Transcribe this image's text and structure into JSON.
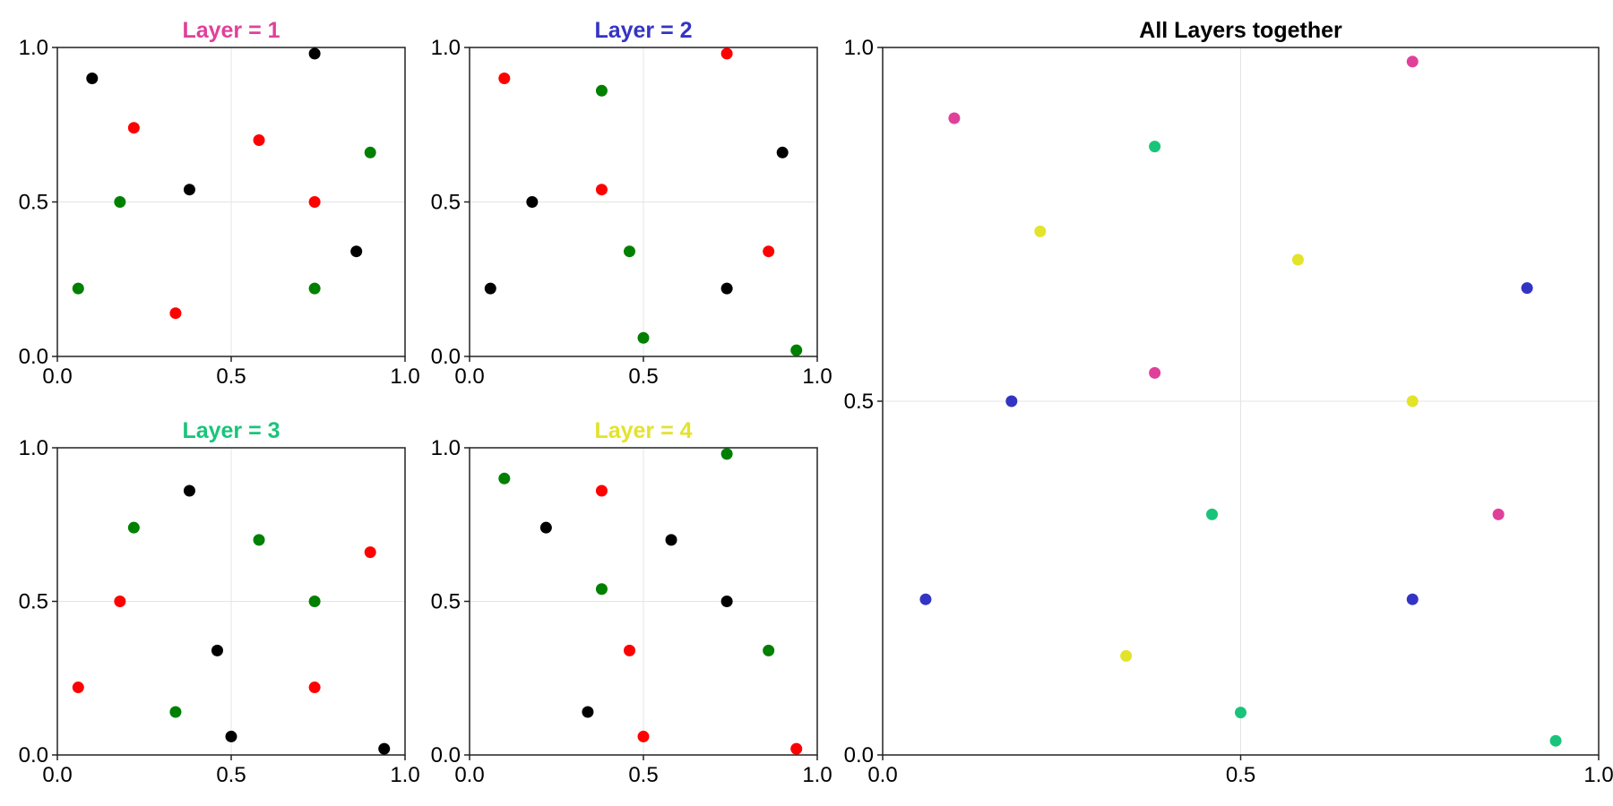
{
  "colors": {
    "layer1": "#e0409a",
    "layer2": "#3434c4",
    "layer3": "#19c47a",
    "layer4": "#e3e32a",
    "black": "#000000",
    "red": "#ff0000",
    "green": "#008000",
    "all_title": "#000000"
  },
  "chart_data": [
    {
      "type": "scatter",
      "title": "Layer = 1",
      "title_color": "#e0409a",
      "xlim": [
        0,
        1
      ],
      "ylim": [
        0,
        1
      ],
      "xticks": [
        "0.0",
        "0.5",
        "1.0"
      ],
      "yticks": [
        "0.0",
        "0.5",
        "1.0"
      ],
      "grid": true,
      "series": [
        {
          "color": "black",
          "x": [
            0.1,
            0.74,
            0.38,
            0.86
          ],
          "y": [
            0.9,
            0.98,
            0.54,
            0.34
          ]
        },
        {
          "color": "red",
          "x": [
            0.22,
            0.58,
            0.74,
            0.34
          ],
          "y": [
            0.74,
            0.7,
            0.5,
            0.14
          ]
        },
        {
          "color": "green",
          "x": [
            0.9,
            0.18,
            0.06,
            0.74
          ],
          "y": [
            0.66,
            0.5,
            0.22,
            0.22
          ]
        }
      ]
    },
    {
      "type": "scatter",
      "title": "Layer = 2",
      "title_color": "#3434c4",
      "xlim": [
        0,
        1
      ],
      "ylim": [
        0,
        1
      ],
      "xticks": [
        "0.0",
        "0.5",
        "1.0"
      ],
      "yticks": [
        "0.0",
        "0.5",
        "1.0"
      ],
      "grid": true,
      "series": [
        {
          "color": "black",
          "x": [
            0.9,
            0.18,
            0.06,
            0.74
          ],
          "y": [
            0.66,
            0.5,
            0.22,
            0.22
          ]
        },
        {
          "color": "red",
          "x": [
            0.1,
            0.74,
            0.38,
            0.86
          ],
          "y": [
            0.9,
            0.98,
            0.54,
            0.34
          ]
        },
        {
          "color": "green",
          "x": [
            0.38,
            0.46,
            0.5,
            0.94
          ],
          "y": [
            0.86,
            0.34,
            0.06,
            0.02
          ]
        }
      ]
    },
    {
      "type": "scatter",
      "title": "Layer = 3",
      "title_color": "#19c47a",
      "xlim": [
        0,
        1
      ],
      "ylim": [
        0,
        1
      ],
      "xticks": [
        "0.0",
        "0.5",
        "1.0"
      ],
      "yticks": [
        "0.0",
        "0.5",
        "1.0"
      ],
      "grid": true,
      "series": [
        {
          "color": "black",
          "x": [
            0.38,
            0.46,
            0.5,
            0.94
          ],
          "y": [
            0.86,
            0.34,
            0.06,
            0.02
          ]
        },
        {
          "color": "red",
          "x": [
            0.9,
            0.18,
            0.06,
            0.74
          ],
          "y": [
            0.66,
            0.5,
            0.22,
            0.22
          ]
        },
        {
          "color": "green",
          "x": [
            0.22,
            0.58,
            0.74,
            0.34
          ],
          "y": [
            0.74,
            0.7,
            0.5,
            0.14
          ]
        }
      ]
    },
    {
      "type": "scatter",
      "title": "Layer = 4",
      "title_color": "#e3e32a",
      "xlim": [
        0,
        1
      ],
      "ylim": [
        0,
        1
      ],
      "xticks": [
        "0.0",
        "0.5",
        "1.0"
      ],
      "yticks": [
        "0.0",
        "0.5",
        "1.0"
      ],
      "grid": true,
      "series": [
        {
          "color": "black",
          "x": [
            0.22,
            0.58,
            0.74,
            0.34
          ],
          "y": [
            0.74,
            0.7,
            0.5,
            0.14
          ]
        },
        {
          "color": "red",
          "x": [
            0.38,
            0.46,
            0.5,
            0.94
          ],
          "y": [
            0.86,
            0.34,
            0.06,
            0.02
          ]
        },
        {
          "color": "green",
          "x": [
            0.1,
            0.74,
            0.38,
            0.86
          ],
          "y": [
            0.9,
            0.98,
            0.54,
            0.34
          ]
        }
      ]
    },
    {
      "type": "scatter",
      "title": "All Layers together",
      "title_color": "#000000",
      "xlim": [
        0,
        1
      ],
      "ylim": [
        0,
        1
      ],
      "xticks": [
        "0.0",
        "0.5",
        "1.0"
      ],
      "yticks": [
        "0.0",
        "0.5",
        "1.0"
      ],
      "grid": true,
      "series": [
        {
          "color": "layer1",
          "x": [
            0.1,
            0.74,
            0.38,
            0.86
          ],
          "y": [
            0.9,
            0.98,
            0.54,
            0.34
          ]
        },
        {
          "color": "layer2",
          "x": [
            0.9,
            0.18,
            0.06,
            0.74
          ],
          "y": [
            0.66,
            0.5,
            0.22,
            0.22
          ]
        },
        {
          "color": "layer3",
          "x": [
            0.38,
            0.46,
            0.5,
            0.94
          ],
          "y": [
            0.86,
            0.34,
            0.06,
            0.02
          ]
        },
        {
          "color": "layer4",
          "x": [
            0.22,
            0.58,
            0.74,
            0.34
          ],
          "y": [
            0.74,
            0.7,
            0.5,
            0.14
          ]
        }
      ]
    }
  ]
}
